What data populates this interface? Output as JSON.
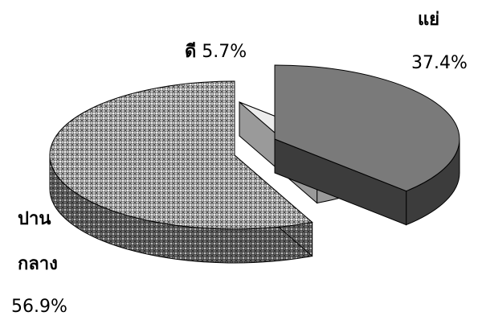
{
  "chart_data": {
    "type": "pie",
    "style": "3d-exploded",
    "slices": [
      {
        "name": "แย่",
        "value": 37.4,
        "value_label": "37.4%",
        "color": "#7a7a7a",
        "side_color": "#3c3c3c"
      },
      {
        "name": "ดี",
        "value": 5.7,
        "value_label": "5.7%",
        "color": "#ececec",
        "side_color": "#9a9a9a"
      },
      {
        "name": "ปานกลาง",
        "name_lines": [
          "ปาน",
          "กลาง"
        ],
        "value": 56.9,
        "value_label": "56.9%",
        "color": "#c8c8c8",
        "side_color": "#5a5a5a",
        "pattern": "dotted-crosshatch"
      }
    ],
    "legend": "none"
  }
}
